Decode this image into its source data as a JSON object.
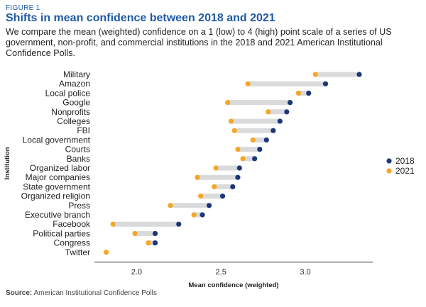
{
  "figure_label": "FIGURE 1",
  "title": "Shifts in mean confidence between 2018 and 2021",
  "subtitle": "We compare the mean (weighted) confidence on a 1 (low) to 4 (high) point scale of a series of US government, non-profit, and commercial institutions in the 2018 and 2021 American Institutional Confidence Polls.",
  "source_label": "Source:",
  "source_text": "American Institutional Confidence Polls",
  "colors": {
    "y2018": "#1c3679",
    "y2021": "#f5a623",
    "bar": "#d9dadb"
  },
  "chart_data": {
    "type": "dumbbell",
    "xlabel": "Mean confidence (weighted)",
    "ylabel": "Institution",
    "xlim": [
      1.75,
      3.4
    ],
    "xticks": [
      "2.0",
      "2.5",
      "3.0"
    ],
    "legend": [
      "2018",
      "2021"
    ],
    "legend_position": "right",
    "categories": [
      "Military",
      "Amazon",
      "Local police",
      "Google",
      "Nonprofits",
      "Colleges",
      "FBI",
      "Local government",
      "Courts",
      "Banks",
      "Organized labor",
      "Major companies",
      "State government",
      "Organized religion",
      "Press",
      "Executive branch",
      "Facebook",
      "Political parties",
      "Congress",
      "Twitter"
    ],
    "series": [
      {
        "name": "2018",
        "values": [
          3.32,
          3.12,
          3.02,
          2.91,
          2.89,
          2.85,
          2.81,
          2.77,
          2.73,
          2.7,
          2.61,
          2.6,
          2.57,
          2.51,
          2.43,
          2.39,
          2.25,
          2.11,
          2.11,
          null
        ]
      },
      {
        "name": "2021",
        "values": [
          3.06,
          2.66,
          2.96,
          2.54,
          2.78,
          2.56,
          2.58,
          2.69,
          2.6,
          2.63,
          2.47,
          2.36,
          2.46,
          2.38,
          2.2,
          2.34,
          1.86,
          1.99,
          2.07,
          1.82
        ]
      }
    ]
  }
}
